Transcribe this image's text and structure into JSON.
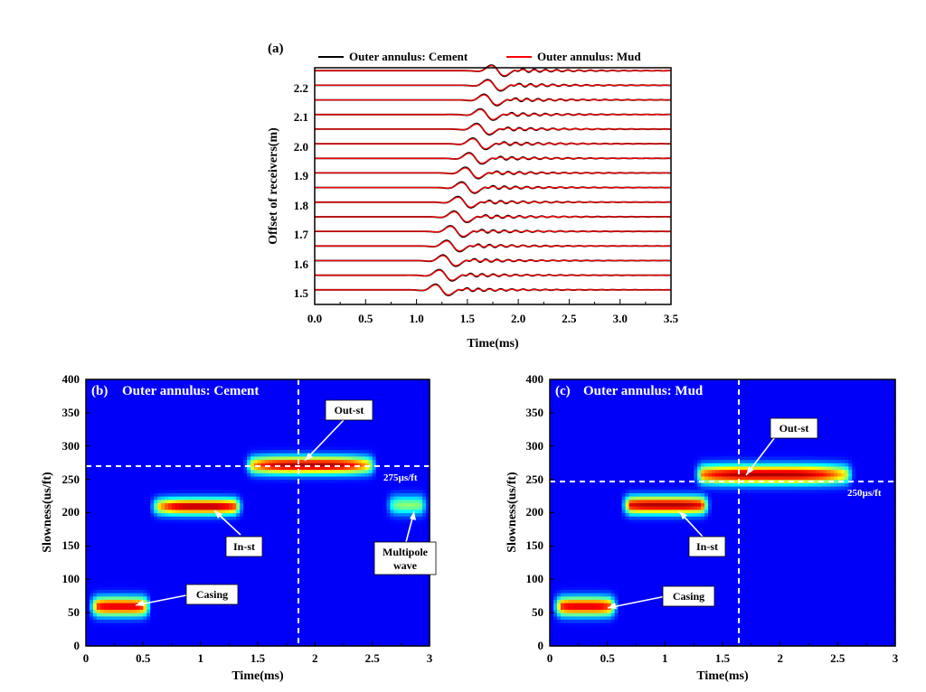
{
  "chart_data": [
    {
      "panel": "(a)",
      "type": "line",
      "xlabel": "Time(ms)",
      "ylabel": "Offset of receivers(m)",
      "xlim": [
        0,
        3.5
      ],
      "ylim": [
        1.45,
        2.26
      ],
      "xticks": [
        "0.0",
        "0.5",
        "1.0",
        "1.5",
        "2.0",
        "2.5",
        "3.0",
        "3.5"
      ],
      "yticks": [
        "1.5",
        "1.6",
        "1.7",
        "1.8",
        "1.9",
        "2.0",
        "2.1",
        "2.2"
      ],
      "legend_position": "top",
      "series": [
        {
          "name": "Outer annulus: Cement",
          "color": "#000000"
        },
        {
          "name": "Outer annulus: Mud",
          "color": "#ff0000"
        }
      ],
      "offsets": [
        1.5,
        1.55,
        1.6,
        1.65,
        1.7,
        1.75,
        1.8,
        1.85,
        1.9,
        1.95,
        2.0,
        2.05,
        2.1,
        2.15,
        2.2,
        2.25
      ],
      "arrival_time_at_1_5m": 1.25,
      "arrival_time_at_2_25m": 1.8
    },
    {
      "panel": "(b)",
      "title": "Outer annulus: Cement",
      "type": "heatmap",
      "xlabel": "Time(ms)",
      "ylabel": "Slowness(us/ft)",
      "xlim": [
        0,
        3
      ],
      "ylim": [
        0,
        400
      ],
      "xticks": [
        "0",
        "0.5",
        "1",
        "1.5",
        "2",
        "2.5",
        "3"
      ],
      "yticks": [
        "0",
        "50",
        "100",
        "150",
        "200",
        "250",
        "300",
        "350",
        "400"
      ],
      "colormap": "jet",
      "dashed_x": 1.85,
      "dashed_y": 270,
      "slowness_label": "275µs/ft",
      "blobs": [
        {
          "x": 0.3,
          "y": 60,
          "sx": 0.22,
          "sy": 14,
          "amp": 0.9,
          "x_start": 0.02,
          "x_end": 0.58
        },
        {
          "x": 1.0,
          "y": 210,
          "sx": 0.28,
          "sy": 12,
          "amp": 0.95,
          "x_start": 0.55,
          "x_end": 1.38
        },
        {
          "x": 1.95,
          "y": 272,
          "sx": 0.4,
          "sy": 13,
          "amp": 0.95,
          "x_start": 1.38,
          "x_end": 2.55
        },
        {
          "x": 2.82,
          "y": 212,
          "sx": 0.13,
          "sy": 14,
          "amp": 0.45,
          "x_start": 2.6,
          "x_end": 3.0
        }
      ],
      "annotations": [
        {
          "text": "Casing",
          "x": 0.4,
          "y": 58
        },
        {
          "text": "In-st",
          "x": 1.1,
          "y": 205
        },
        {
          "text": "Out-st",
          "x": 1.92,
          "y": 280
        },
        {
          "text": "Multipole",
          "x": 2.85,
          "y": 210
        },
        {
          "text": "wave",
          "x": 2.85,
          "y": 210
        }
      ]
    },
    {
      "panel": "(c)",
      "title": "Outer annulus: Mud",
      "type": "heatmap",
      "xlabel": "Time(ms)",
      "ylabel": "Slowness(us/ft)",
      "xlim": [
        0,
        3
      ],
      "ylim": [
        0,
        400
      ],
      "xticks": [
        "0",
        "0.5",
        "1",
        "1.5",
        "2",
        "2.5",
        "3"
      ],
      "yticks": [
        "0",
        "50",
        "100",
        "150",
        "200",
        "250",
        "300",
        "350",
        "400"
      ],
      "colormap": "jet",
      "dashed_x": 1.65,
      "dashed_y": 245,
      "slowness_label": "250µs/ft",
      "blobs": [
        {
          "x": 0.3,
          "y": 60,
          "sx": 0.22,
          "sy": 14,
          "amp": 0.9,
          "x_start": 0.02,
          "x_end": 0.6
        },
        {
          "x": 1.0,
          "y": 212,
          "sx": 0.35,
          "sy": 13,
          "amp": 0.95,
          "x_start": 0.62,
          "x_end": 1.4
        },
        {
          "x": 1.9,
          "y": 258,
          "sx": 0.5,
          "sy": 14,
          "amp": 0.95,
          "x_start": 1.25,
          "x_end": 2.65
        }
      ],
      "annotations": [
        {
          "text": "Casing",
          "x": 0.5,
          "y": 55
        },
        {
          "text": "In-st",
          "x": 1.15,
          "y": 205
        },
        {
          "text": "Out-st",
          "x": 1.7,
          "y": 255
        }
      ]
    }
  ]
}
